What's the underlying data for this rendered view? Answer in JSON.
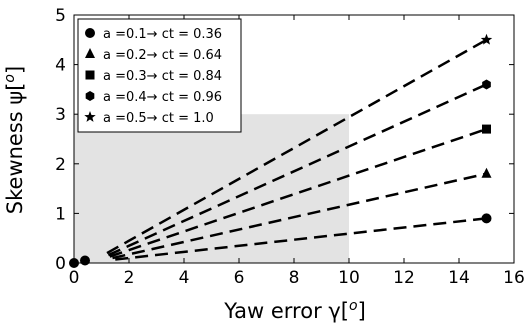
{
  "chart_data": {
    "type": "line",
    "title": "",
    "xlabel": "Yaw error γ[",
    "xlabel_unit": "o",
    "xlabel_close": "]",
    "ylabel": "Skewness ψ[",
    "ylabel_unit": "o",
    "ylabel_close": "]",
    "xlim": [
      0,
      16
    ],
    "ylim": [
      0,
      5
    ],
    "xticks": [
      0,
      2,
      4,
      6,
      8,
      10,
      12,
      14,
      16
    ],
    "yticks": [
      0,
      1,
      2,
      3,
      4,
      5
    ],
    "grid": false,
    "legend_position": "top-left",
    "shaded_region": {
      "x": [
        0,
        10
      ],
      "y": [
        0,
        3
      ],
      "color": "#e3e3e3"
    },
    "series": [
      {
        "name": "a =0.1→ ct = 0.36",
        "marker": "circle",
        "line_start": [
          1.5,
          0.07
        ],
        "line_end": [
          15,
          0.9
        ],
        "point": [
          15,
          0.9
        ]
      },
      {
        "name": "a =0.2→ ct = 0.64",
        "marker": "triangle",
        "line_start": [
          1.4,
          0.1
        ],
        "line_end": [
          15,
          1.8
        ],
        "point": [
          15,
          1.8
        ]
      },
      {
        "name": "a =0.3→ ct = 0.84",
        "marker": "square",
        "line_start": [
          1.3,
          0.13
        ],
        "line_end": [
          15,
          2.7
        ],
        "point": [
          15,
          2.7
        ]
      },
      {
        "name": "a =0.4→ ct = 0.96",
        "marker": "hexagon",
        "line_start": [
          1.25,
          0.16
        ],
        "line_end": [
          15,
          3.6
        ],
        "point": [
          15,
          3.6
        ]
      },
      {
        "name": "a =0.5→ ct = 1.0",
        "marker": "star",
        "line_start": [
          1.2,
          0.2
        ],
        "line_end": [
          15,
          4.5
        ],
        "point": [
          15,
          4.5
        ]
      }
    ],
    "origin_markers": [
      [
        0,
        0
      ],
      [
        0.4,
        0.05
      ]
    ]
  }
}
